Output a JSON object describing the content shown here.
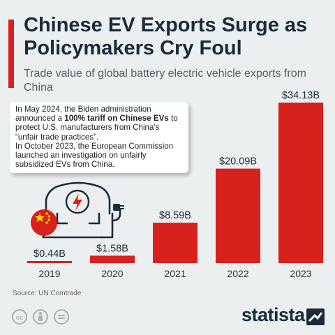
{
  "header": {
    "title": "Chinese EV Exports Surge as Policymakers Cry Foul",
    "subtitle": "Trade value of global battery electric vehicle exports from China"
  },
  "callout": {
    "line1_pre": "In May 2024, the Biden administration announced a ",
    "line1_bold": "100% tariff on Chinese EVs",
    "line1_post": " to protect U.S. manufacturers from China's “unfair trade practices”.",
    "line2": "In October 2023, the European Commission launched an investigation on unfairly subsidized EVs from China."
  },
  "footer": {
    "source": "Source: UN Comtrade",
    "brand": "statista"
  },
  "colors": {
    "bar": "#d8201c",
    "accent": "#d8201c",
    "text": "#1c2b3a",
    "background": "#ecefef"
  },
  "icons": [
    "ev-car-icon",
    "china-flag-icon",
    "lightning-icon",
    "plug-icon",
    "cc-icon",
    "attribution-icon",
    "equals-icon",
    "statista-logo-icon"
  ],
  "chart_data": {
    "type": "bar",
    "categories": [
      "2019",
      "2020",
      "2021",
      "2022",
      "2023"
    ],
    "values": [
      0.44,
      1.58,
      8.59,
      20.09,
      34.13
    ],
    "value_labels": [
      "$0.44B",
      "$1.58B",
      "$8.59B",
      "$20.09B",
      "$34.13B"
    ],
    "ylim": [
      0,
      34.13
    ],
    "grid": false,
    "legend": "none"
  }
}
